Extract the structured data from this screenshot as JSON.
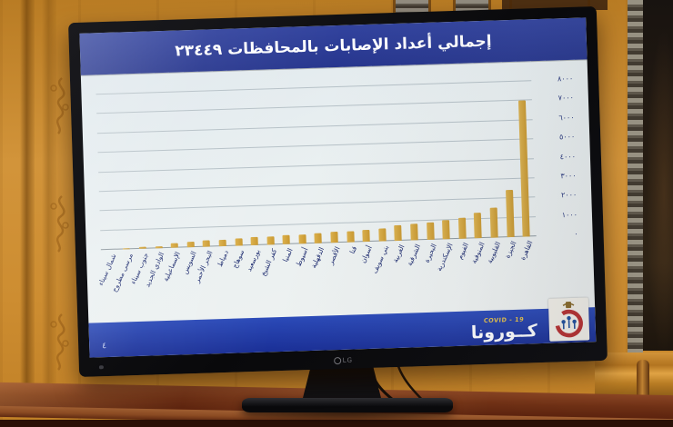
{
  "scene": {
    "tv_brand_label": "LG"
  },
  "slide": {
    "title": "إجمالي أعداد الإصابات بالمحافظات ٢٣٤٤٩",
    "slide_number": "٤",
    "footer": {
      "program_arabic": "كــورونا",
      "program_english": "COVID - 19",
      "logo_icon": "ministry-of-health-egypt-logo"
    },
    "colors": {
      "title_band": "#2c3c96",
      "footer_band": "#1f3aa6",
      "bar": "#cf9e36",
      "screen_background": "#e8edef",
      "axis_label_text": "#20307a"
    }
  },
  "chart_data": {
    "type": "bar",
    "title": "إجمالي أعداد الإصابات بالمحافظات ٢٣٤٤٩",
    "total": 23449,
    "total_label": "٢٣٤٤٩",
    "orientation_rtl": true,
    "grid": true,
    "y_axis_side": "right",
    "ylim": [
      0,
      8000
    ],
    "ytick_step": 1000,
    "ytick_labels": [
      "٠",
      "١٠٠٠",
      "٢٠٠٠",
      "٣٠٠٠",
      "٤٠٠٠",
      "٥٠٠٠",
      "٦٠٠٠",
      "٧٠٠٠",
      "٨٠٠٠"
    ],
    "categories": [
      "القاهرة",
      "الجيزة",
      "القليوبية",
      "المنوفية",
      "الفيوم",
      "الإسكندرية",
      "البحيرة",
      "الشرقية",
      "الغربية",
      "بني سويف",
      "أسوان",
      "قنا",
      "الأقصر",
      "الدقهلية",
      "أسيوط",
      "المنيا",
      "كفر الشيخ",
      "بورسعيد",
      "سوهاج",
      "دمياط",
      "البحر الأحمر",
      "السويس",
      "الإسماعيلية",
      "الوادي الجديد",
      "جنوب سيناء",
      "مرسى مطروح",
      "شمال سيناء"
    ],
    "values": [
      7000,
      2450,
      1550,
      1300,
      1100,
      1000,
      900,
      850,
      800,
      650,
      600,
      570,
      550,
      520,
      480,
      450,
      420,
      400,
      380,
      350,
      330,
      300,
      250,
      114,
      75,
      45,
      15
    ]
  }
}
